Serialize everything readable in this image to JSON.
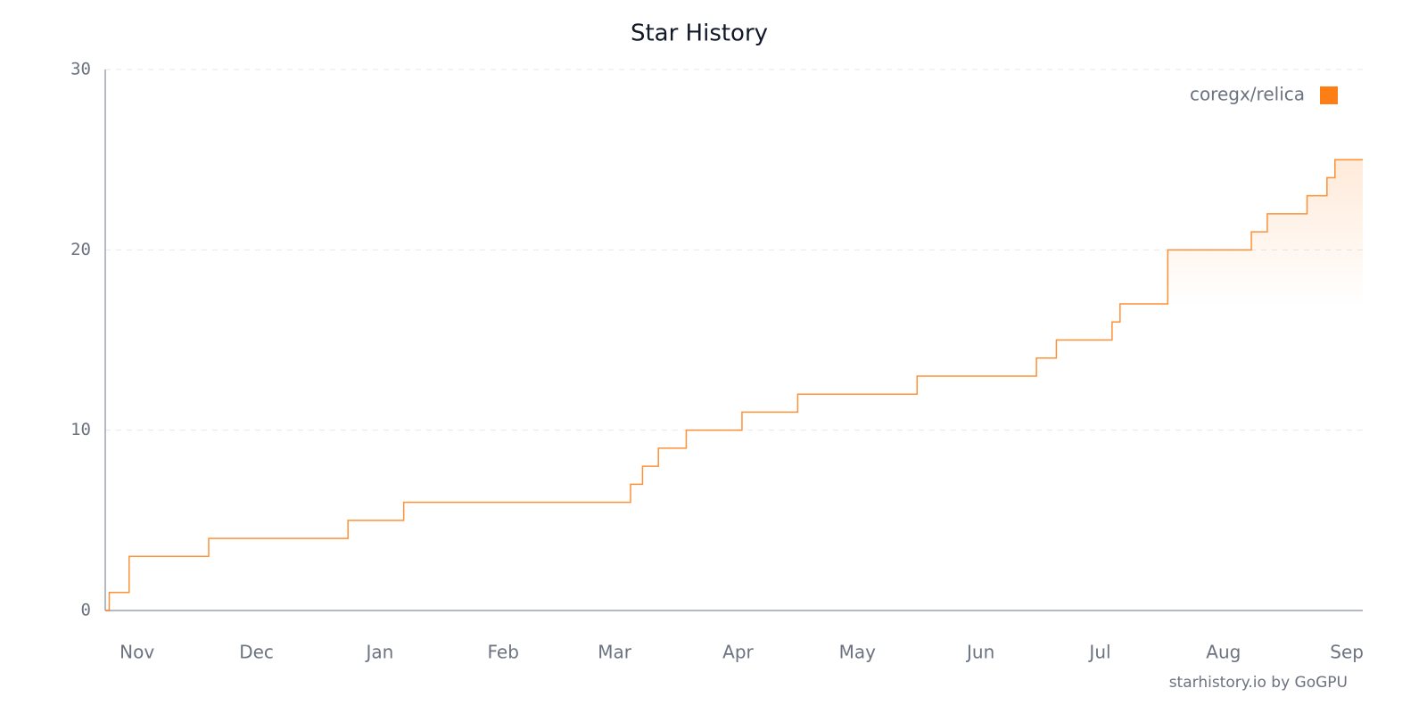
{
  "chart_data": {
    "type": "step-line",
    "title": "Star History",
    "x": [
      -8,
      -7,
      -2,
      18,
      53,
      67,
      124,
      127,
      131,
      138,
      152,
      166,
      196,
      226,
      231,
      245,
      247,
      259,
      280,
      284,
      294,
      299,
      301,
      308
    ],
    "series": [
      {
        "name": "coregx/relica",
        "color": "#fd7e14",
        "values": [
          0,
          1,
          3,
          4,
          5,
          6,
          7,
          8,
          9,
          10,
          11,
          12,
          13,
          14,
          15,
          16,
          17,
          20,
          21,
          22,
          23,
          24,
          25,
          25
        ]
      }
    ],
    "xlim": [
      -8,
      308
    ],
    "xticks": [
      {
        "value": 0,
        "label": "Nov"
      },
      {
        "value": 30,
        "label": "Dec"
      },
      {
        "value": 61,
        "label": "Jan"
      },
      {
        "value": 92,
        "label": "Feb"
      },
      {
        "value": 120,
        "label": "Mar"
      },
      {
        "value": 151,
        "label": "Apr"
      },
      {
        "value": 181,
        "label": "May"
      },
      {
        "value": 212,
        "label": "Jun"
      },
      {
        "value": 242,
        "label": "Jul"
      },
      {
        "value": 273,
        "label": "Aug"
      },
      {
        "value": 304,
        "label": "Sep"
      }
    ],
    "ylim": [
      0,
      30
    ],
    "yticks": [
      0,
      10,
      20,
      30
    ],
    "grid": true,
    "legend": "top-right",
    "footer": "starhistory.io by GoGPU"
  }
}
